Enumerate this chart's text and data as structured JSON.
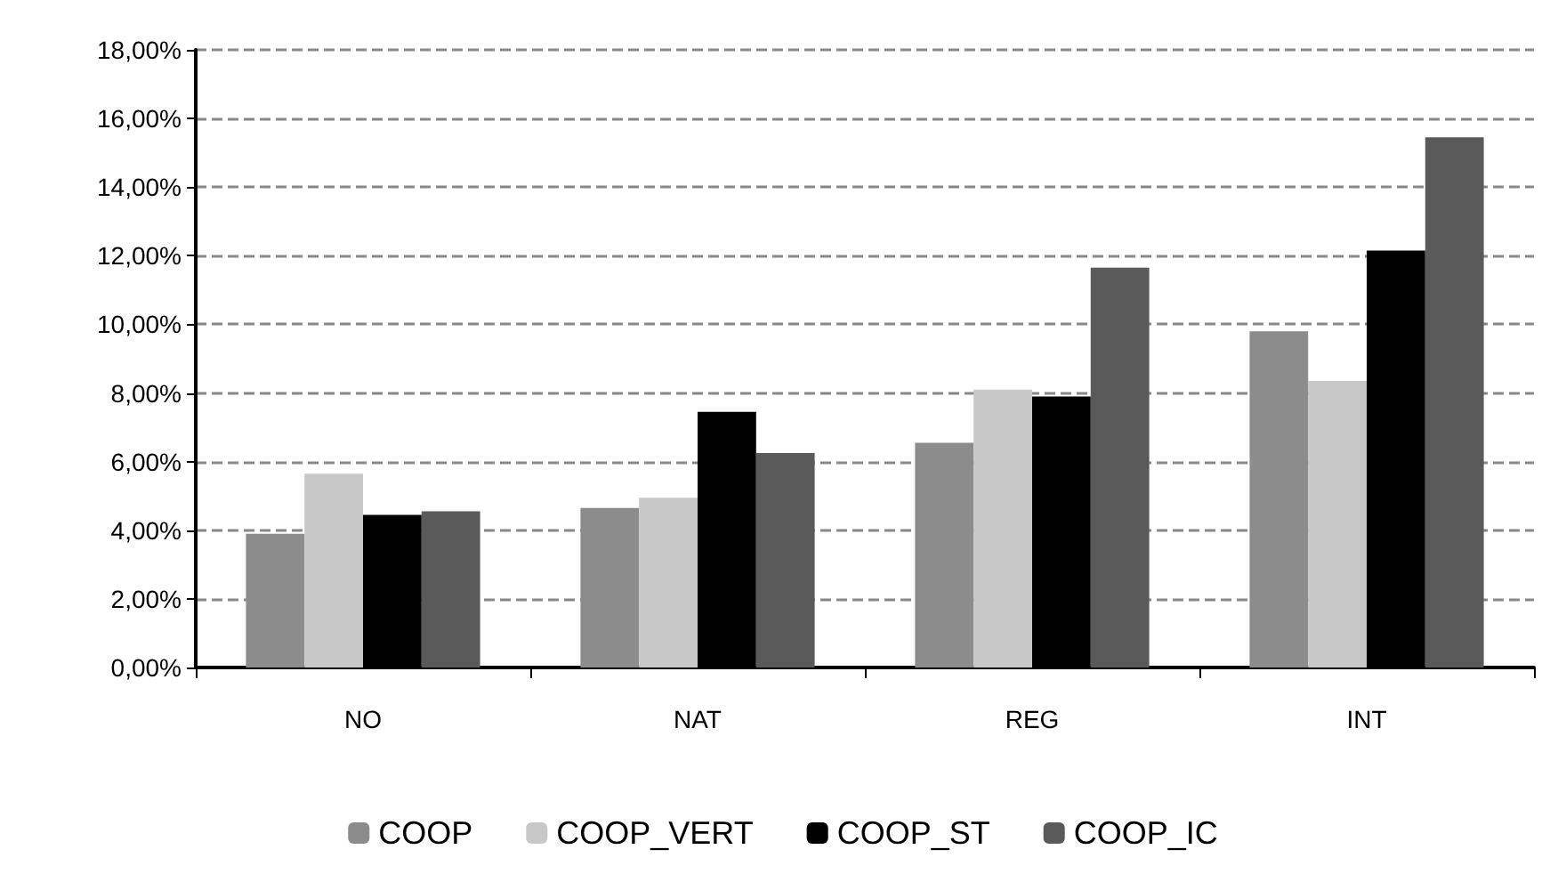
{
  "chart_data": {
    "type": "bar",
    "categories": [
      "NO",
      "NAT",
      "REG",
      "INT"
    ],
    "series": [
      {
        "name": "COOP",
        "color": "#8c8c8c",
        "values": [
          3.9,
          4.65,
          6.55,
          9.8
        ]
      },
      {
        "name": "COOP_VERT",
        "color": "#c8c8c8",
        "values": [
          5.65,
          4.95,
          8.1,
          8.35
        ]
      },
      {
        "name": "COOP_ST",
        "color": "#000000",
        "values": [
          4.45,
          7.45,
          7.9,
          12.15
        ]
      },
      {
        "name": "COOP_IC",
        "color": "#5a5a5a",
        "values": [
          4.55,
          6.25,
          11.65,
          15.45
        ]
      }
    ],
    "ylim": [
      0,
      18
    ],
    "yticks": [
      {
        "value": 0,
        "label": "0,00%"
      },
      {
        "value": 2,
        "label": "2,00%"
      },
      {
        "value": 4,
        "label": "4,00%"
      },
      {
        "value": 6,
        "label": "6,00%"
      },
      {
        "value": 8,
        "label": "8,00%"
      },
      {
        "value": 10,
        "label": "10,00%"
      },
      {
        "value": 12,
        "label": "12,00%"
      },
      {
        "value": 14,
        "label": "14,00%"
      },
      {
        "value": 16,
        "label": "16,00%"
      },
      {
        "value": 18,
        "label": "18,00%"
      }
    ],
    "grid": "y",
    "legend": "bottom"
  }
}
